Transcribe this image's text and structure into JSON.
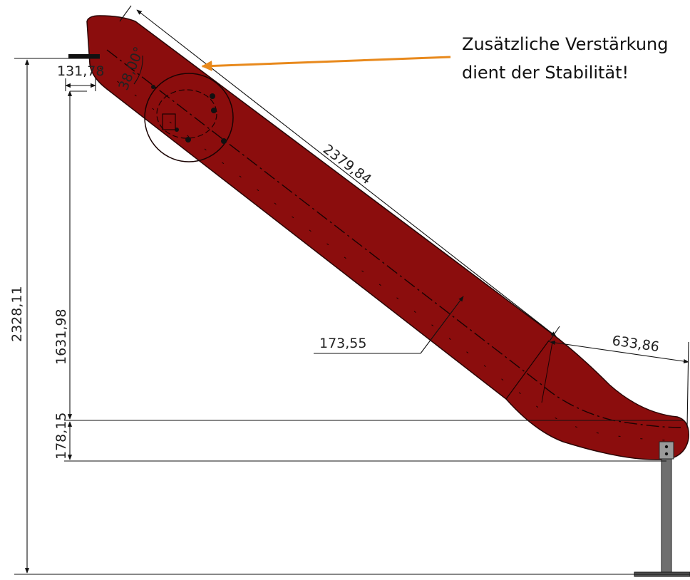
{
  "annotation": {
    "line1": "Zusätzliche Verstärkung",
    "line2": "dient der Stabilität!",
    "arrow_color": "#e8891c"
  },
  "dimensions": {
    "total_height": "2328,11",
    "lower_height": "1631,98",
    "exit_height": "178,15",
    "top_offset": "131,78",
    "angle": "38,00°",
    "slide_length": "2379,84",
    "width": "173,55",
    "exit_length": "633,86"
  },
  "colors": {
    "slide_fill": "#8b0d0d",
    "post": "#6f6f6f",
    "lines": "#1a1a1a"
  }
}
